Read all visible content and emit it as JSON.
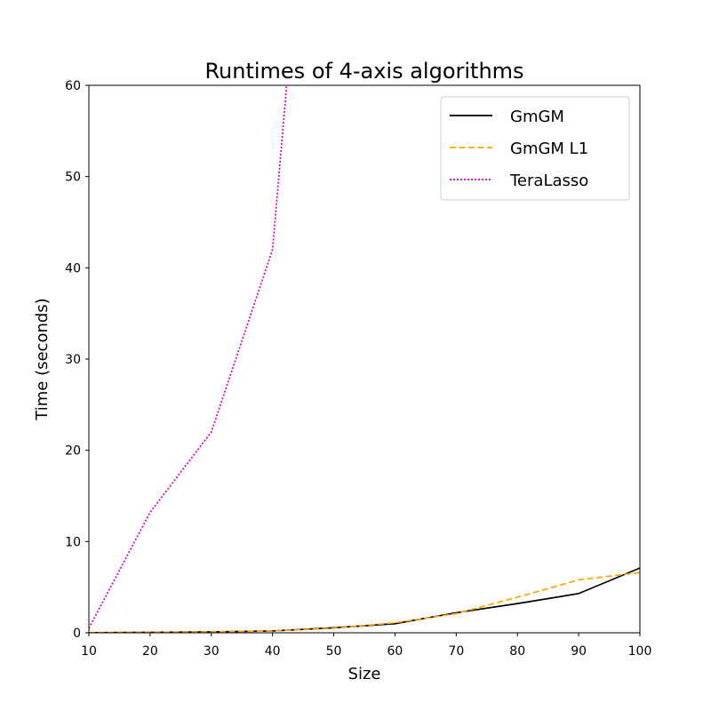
{
  "chart_data": {
    "type": "line",
    "title": "Runtimes of 4-axis algorithms",
    "xlabel": "Size",
    "ylabel": "Time (seconds)",
    "xlim": [
      10,
      100
    ],
    "ylim": [
      0,
      60
    ],
    "xticks": [
      10,
      20,
      30,
      40,
      50,
      60,
      70,
      80,
      90,
      100
    ],
    "yticks": [
      0,
      10,
      20,
      30,
      40,
      50,
      60
    ],
    "grid": false,
    "legend_position": "top-right",
    "series": [
      {
        "name": "GmGM",
        "color": "#000000",
        "style": "solid",
        "x": [
          10,
          20,
          30,
          40,
          50,
          60,
          70,
          80,
          90,
          100
        ],
        "y": [
          0.02,
          0.05,
          0.1,
          0.2,
          0.55,
          1.0,
          2.2,
          3.2,
          4.3,
          7.1
        ]
      },
      {
        "name": "GmGM L1",
        "color": "#ffa500",
        "style": "dashed",
        "x": [
          10,
          20,
          30,
          40,
          50,
          60,
          70,
          80,
          90,
          100
        ],
        "y": [
          0.02,
          0.05,
          0.1,
          0.2,
          0.5,
          1.1,
          2.1,
          3.9,
          5.8,
          6.6
        ]
      },
      {
        "name": "TeraLasso",
        "color": "#cc00cc",
        "style": "dotted",
        "x": [
          10,
          20,
          30,
          40,
          50
        ],
        "y": [
          0.5,
          13.2,
          22.0,
          42.0,
          120.0
        ]
      }
    ]
  }
}
